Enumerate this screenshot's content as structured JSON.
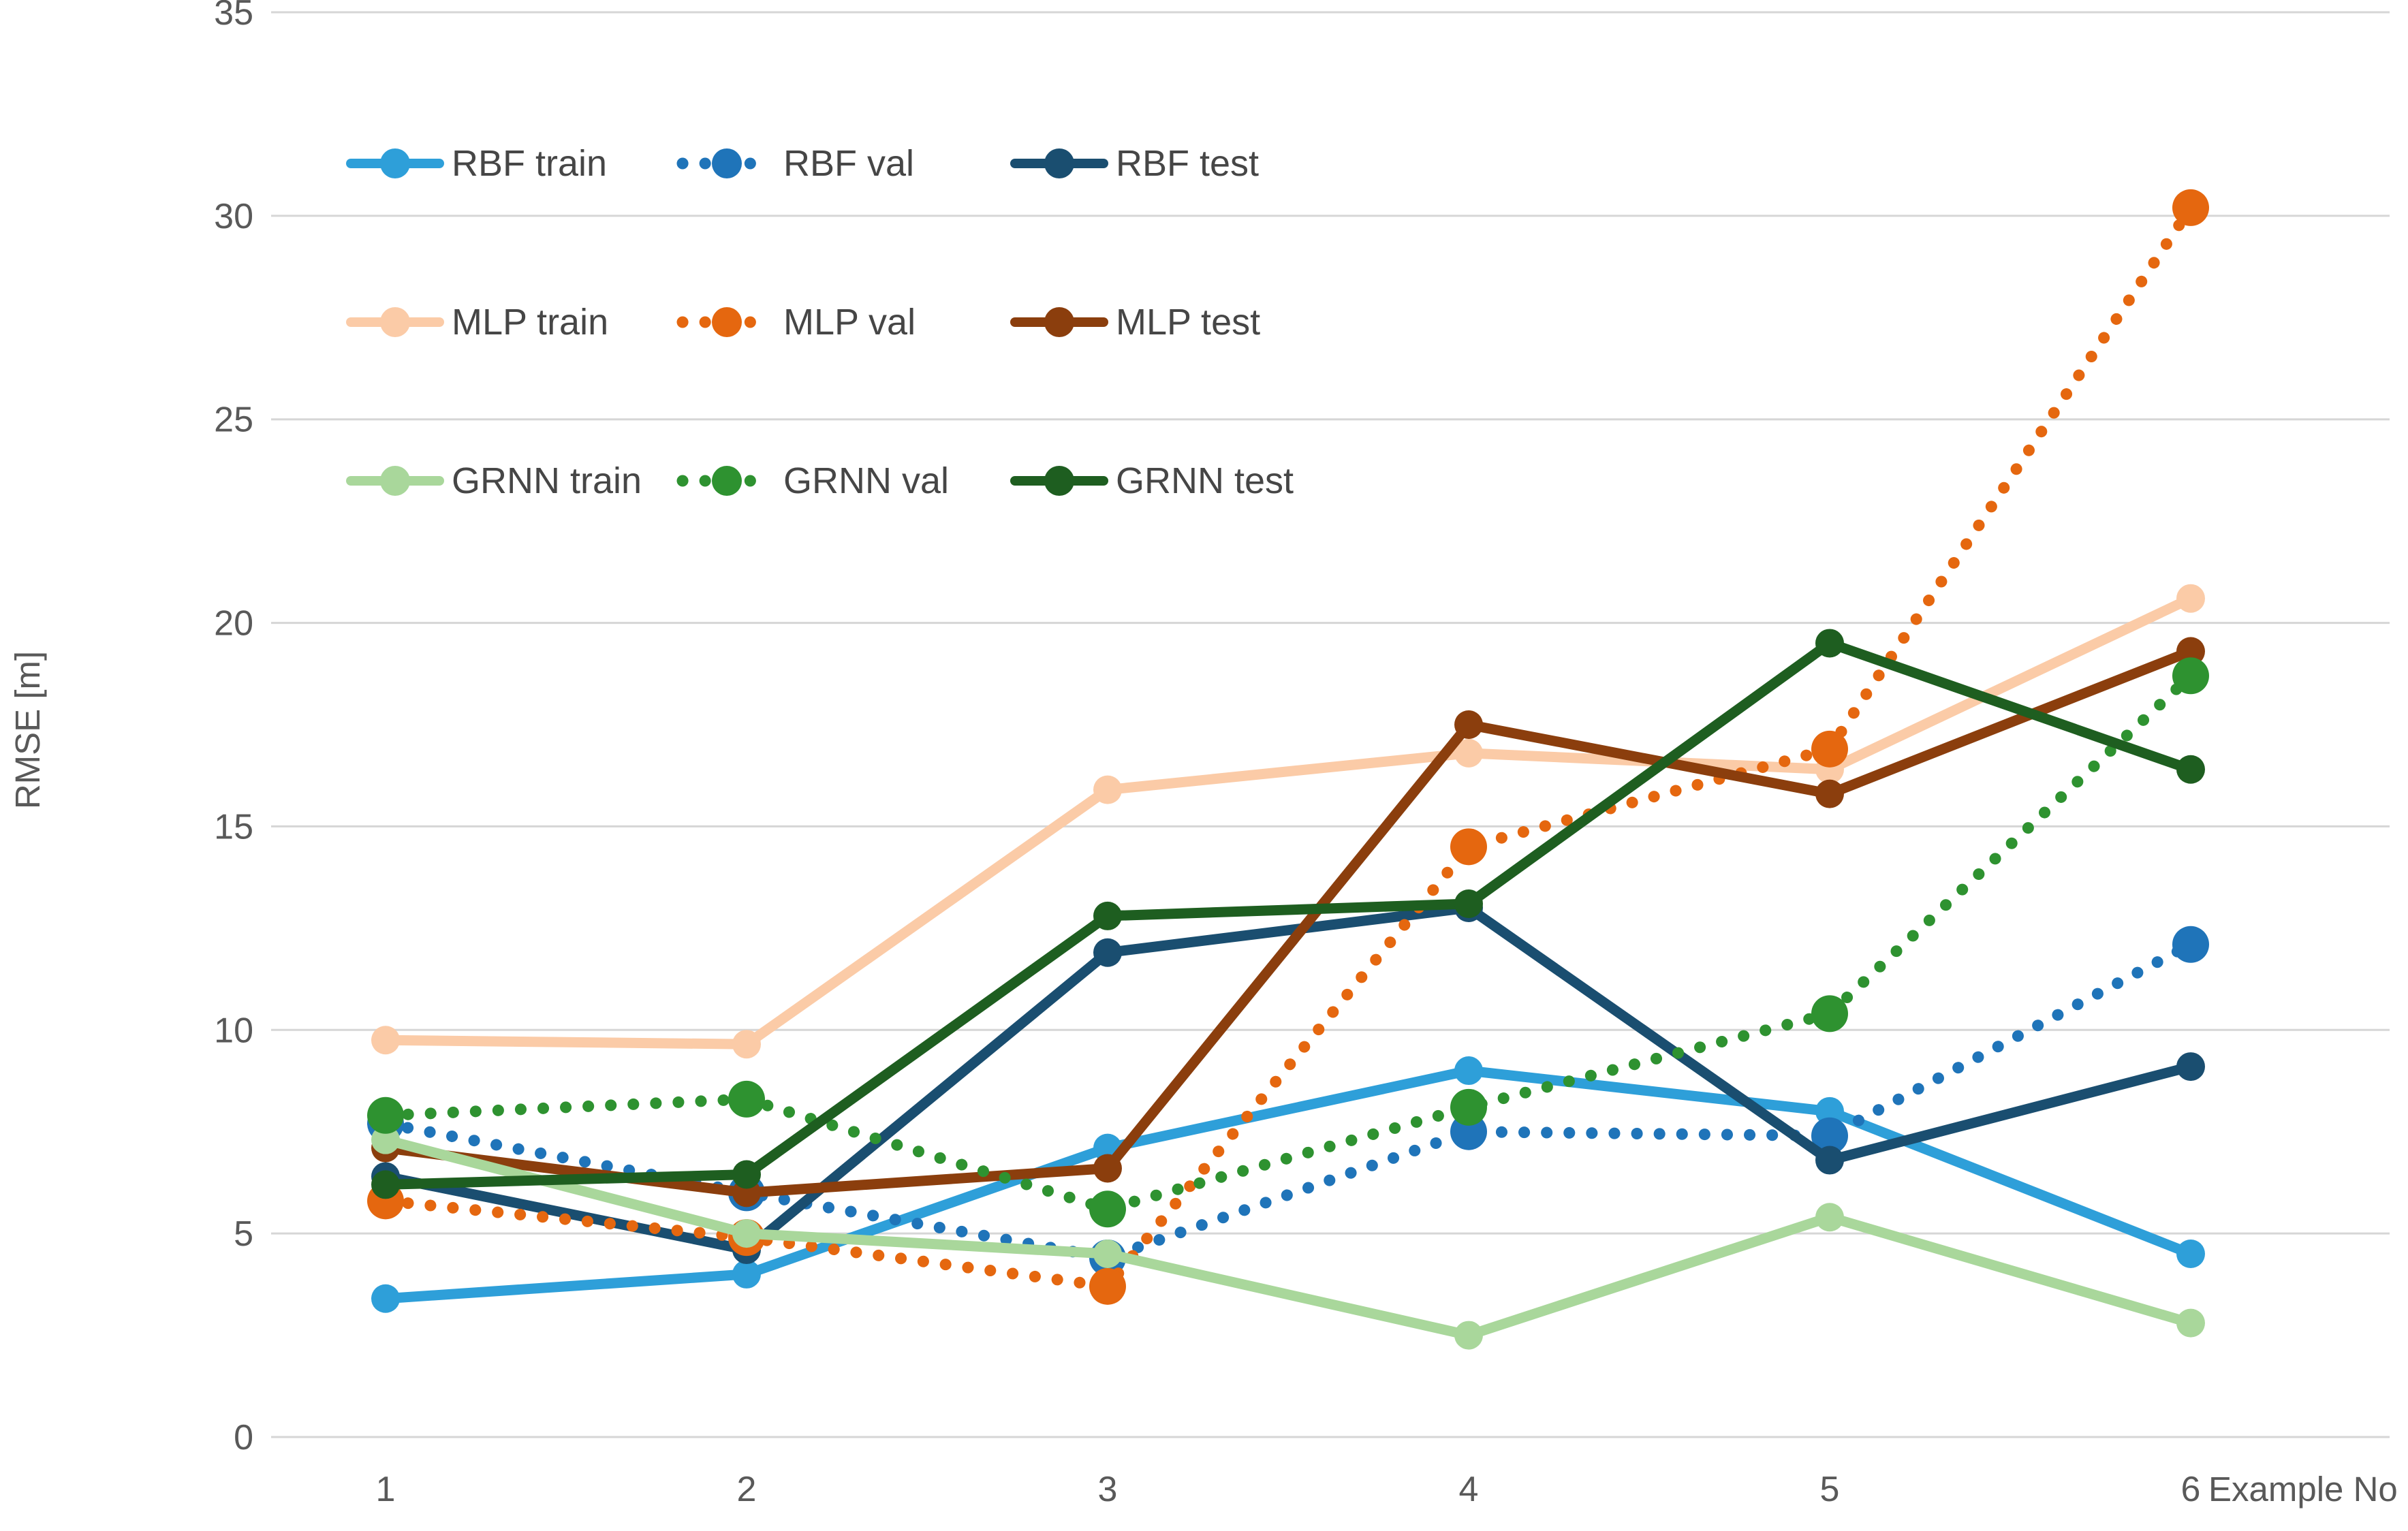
{
  "chart_data": {
    "type": "line",
    "title": "",
    "xlabel": "Example No",
    "ylabel": "RMSE [m]",
    "x": [
      1,
      2,
      3,
      4,
      5,
      6
    ],
    "x_tick_labels": [
      "1",
      "2",
      "3",
      "4",
      "5",
      "6"
    ],
    "ylim": [
      0,
      35
    ],
    "yticks": [
      0,
      5,
      10,
      15,
      20,
      25,
      30,
      35
    ],
    "grid": true,
    "legend_position": "inside-top-left",
    "legend_rows": [
      [
        "RBF train",
        "RBF val",
        "RBF test"
      ],
      [
        "MLP train",
        "MLP val",
        "MLP test"
      ],
      [
        "GRNN train",
        "GRNN val",
        "GRNN test"
      ]
    ],
    "series": [
      {
        "name": "RBF train",
        "group": "RBF",
        "split": "train",
        "style": "solid",
        "color": "#2E9FD9",
        "values": [
          3.4,
          4.0,
          7.1,
          9.0,
          8.0,
          4.5
        ]
      },
      {
        "name": "RBF val",
        "group": "RBF",
        "split": "val",
        "style": "dotted",
        "color": "#1F74B9",
        "values": [
          7.7,
          6.0,
          4.4,
          7.5,
          7.4,
          12.1
        ]
      },
      {
        "name": "RBF test",
        "group": "RBF",
        "split": "test",
        "style": "solid",
        "color": "#1A4E70",
        "values": [
          6.4,
          4.6,
          11.9,
          13.0,
          6.8,
          9.1
        ]
      },
      {
        "name": "MLP train",
        "group": "MLP",
        "split": "train",
        "style": "solid",
        "color": "#FBCBA7",
        "values": [
          9.75,
          9.65,
          15.9,
          16.8,
          16.4,
          20.6
        ]
      },
      {
        "name": "MLP val",
        "group": "MLP",
        "split": "val",
        "style": "dotted",
        "color": "#E5670F",
        "values": [
          5.8,
          4.9,
          3.7,
          14.5,
          16.9,
          30.2
        ]
      },
      {
        "name": "MLP test",
        "group": "MLP",
        "split": "test",
        "style": "solid",
        "color": "#8B3E0D",
        "values": [
          7.1,
          6.0,
          6.6,
          17.5,
          15.8,
          19.3
        ]
      },
      {
        "name": "GRNN train",
        "group": "GRNN",
        "split": "train",
        "style": "solid",
        "color": "#A9D79B",
        "values": [
          7.3,
          5.0,
          4.5,
          2.5,
          5.4,
          2.8
        ]
      },
      {
        "name": "GRNN val",
        "group": "GRNN",
        "split": "val",
        "style": "dotted",
        "color": "#2E9230",
        "values": [
          7.9,
          8.3,
          5.6,
          8.1,
          10.4,
          18.7
        ]
      },
      {
        "name": "GRNN test",
        "group": "GRNN",
        "split": "test",
        "style": "solid",
        "color": "#1E5E20",
        "values": [
          6.2,
          6.45,
          12.8,
          13.1,
          19.5,
          16.4
        ]
      }
    ],
    "colors": {
      "grid": "#D6D6D6",
      "tick_text": "#595959",
      "legend_text": "#464646",
      "background": "#FFFFFF"
    }
  }
}
